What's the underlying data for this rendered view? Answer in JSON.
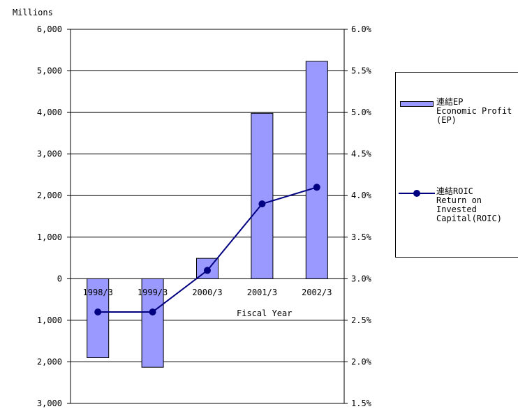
{
  "chart_data": {
    "type": "bar",
    "unit_label": "Millions",
    "xlabel": "Fiscal Year",
    "categories": [
      "1998/3",
      "1999/3",
      "2000/3",
      "2001/3",
      "2002/3"
    ],
    "y_left": {
      "ylim": [
        -3000,
        6000
      ],
      "ticks": [
        6000,
        5000,
        4000,
        3000,
        2000,
        1000,
        0,
        -1000,
        -2000,
        -3000
      ],
      "tick_labels": [
        "6,000",
        "5,000",
        "4,000",
        "3,000",
        "2,000",
        "1,000",
        "0",
        "1,000",
        "2,000",
        "3,000"
      ]
    },
    "y_right": {
      "ylim": [
        1.5,
        6.0
      ],
      "ticks": [
        6.0,
        5.5,
        5.0,
        4.5,
        4.0,
        3.5,
        3.0,
        2.5,
        2.0,
        1.5
      ],
      "tick_labels": [
        "6.0%",
        "5.5%",
        "5.0%",
        "4.5%",
        "4.0%",
        "3.5%",
        "3.0%",
        "2.5%",
        "2.0%",
        "1.5%"
      ]
    },
    "series": [
      {
        "name": "連結EP\nEconomic Profit\n(EP)",
        "kind": "bar",
        "axis": "left",
        "color": "#9999ff",
        "values": [
          -1900,
          -2130,
          490,
          3980,
          5230
        ]
      },
      {
        "name": "連結ROIC\nReturn on\nInvested\nCapital(ROIC)",
        "kind": "line",
        "axis": "right",
        "color": "#000080",
        "values": [
          2.6,
          2.6,
          3.1,
          3.9,
          4.1
        ]
      }
    ],
    "grid": true,
    "legend_position": "right"
  }
}
